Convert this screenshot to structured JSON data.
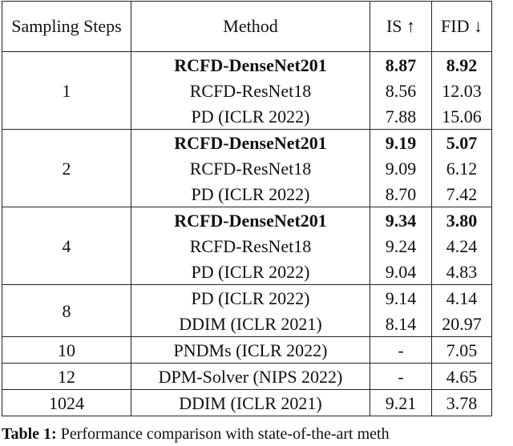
{
  "table": {
    "header": [
      "Sampling Steps",
      "Method",
      "IS ↑",
      "FID ↓"
    ],
    "groups": [
      {
        "steps": "1",
        "rows": [
          {
            "method": "RCFD-DenseNet201",
            "is": "8.87",
            "fid": "8.92",
            "bold": true
          },
          {
            "method": "RCFD-ResNet18",
            "is": "8.56",
            "fid": "12.03",
            "bold": false
          },
          {
            "method": "PD (ICLR 2022)",
            "is": "7.88",
            "fid": "15.06",
            "bold": false
          }
        ]
      },
      {
        "steps": "2",
        "rows": [
          {
            "method": "RCFD-DenseNet201",
            "is": "9.19",
            "fid": "5.07",
            "bold": true
          },
          {
            "method": "RCFD-ResNet18",
            "is": "9.09",
            "fid": "6.12",
            "bold": false
          },
          {
            "method": "PD (ICLR 2022)",
            "is": "8.70",
            "fid": "7.42",
            "bold": false
          }
        ]
      },
      {
        "steps": "4",
        "rows": [
          {
            "method": "RCFD-DenseNet201",
            "is": "9.34",
            "fid": "3.80",
            "bold": true
          },
          {
            "method": "RCFD-ResNet18",
            "is": "9.24",
            "fid": "4.24",
            "bold": false
          },
          {
            "method": "PD (ICLR 2022)",
            "is": "9.04",
            "fid": "4.83",
            "bold": false
          }
        ]
      },
      {
        "steps": "8",
        "rows": [
          {
            "method": "PD (ICLR 2022)",
            "is": "9.14",
            "fid": "4.14",
            "bold": false
          },
          {
            "method": "DDIM (ICLR 2021)",
            "is": "8.14",
            "fid": "20.97",
            "bold": false
          }
        ]
      },
      {
        "steps": "10",
        "rows": [
          {
            "method": "PNDMs (ICLR 2022)",
            "is": "-",
            "fid": "7.05",
            "bold": false
          }
        ]
      },
      {
        "steps": "12",
        "rows": [
          {
            "method": "DPM-Solver (NIPS 2022)",
            "is": "-",
            "fid": "4.65",
            "bold": false
          }
        ]
      },
      {
        "steps": "1024",
        "rows": [
          {
            "method": "DDIM (ICLR 2021)",
            "is": "9.21",
            "fid": "3.78",
            "bold": false
          }
        ]
      }
    ]
  },
  "caption": {
    "label": "Table 1:",
    "text": "Performance comparison with state-of-the-art meth"
  }
}
